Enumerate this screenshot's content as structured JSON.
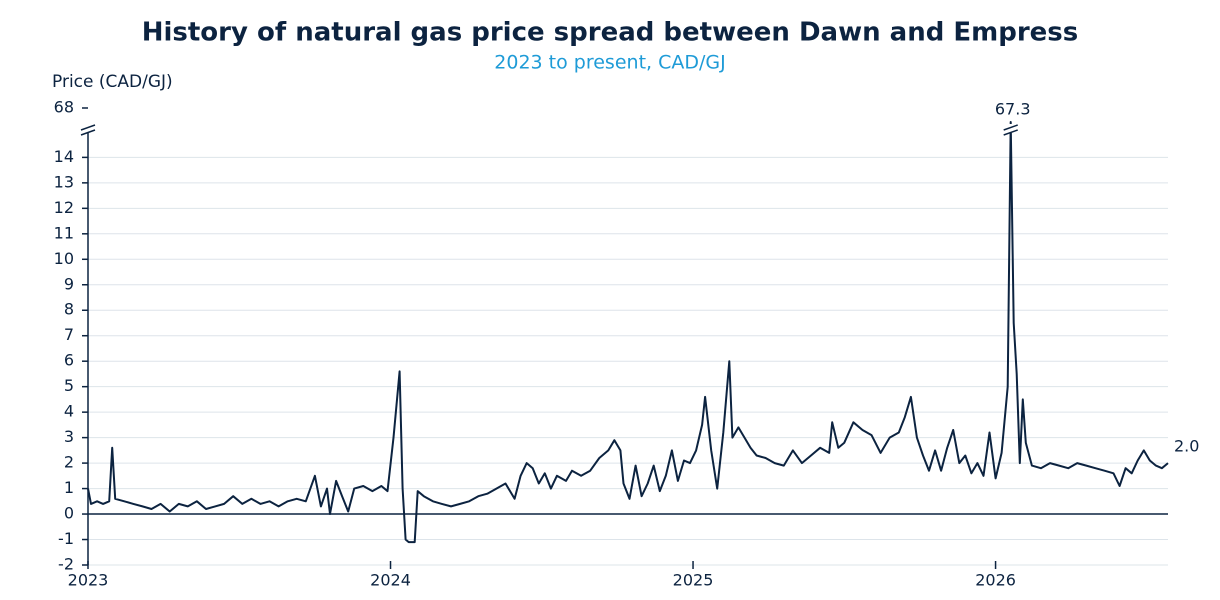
{
  "chart_data": {
    "type": "line",
    "title": "History of natural gas price spread between Dawn and Empress",
    "subtitle": "2023 to present, CAD/GJ",
    "y_label": "Price (CAD/GJ)",
    "xlim": [
      2023,
      2026.57
    ],
    "xticks": [
      2023,
      2024,
      2025,
      2026
    ],
    "ylim": [
      -2,
      68
    ],
    "ybreak": [
      14.8,
      67
    ],
    "yticks": [
      -2,
      -1,
      0,
      1,
      2,
      3,
      4,
      5,
      6,
      7,
      8,
      9,
      10,
      11,
      12,
      13,
      14,
      68
    ],
    "grid": true,
    "series": [
      {
        "color": "#0c2340",
        "x": [
          2023.0,
          2023.01,
          2023.03,
          2023.05,
          2023.07,
          2023.08,
          2023.09,
          2023.12,
          2023.15,
          2023.18,
          2023.21,
          2023.24,
          2023.27,
          2023.3,
          2023.33,
          2023.36,
          2023.39,
          2023.42,
          2023.45,
          2023.48,
          2023.51,
          2023.54,
          2023.57,
          2023.6,
          2023.63,
          2023.66,
          2023.69,
          2023.72,
          2023.75,
          2023.77,
          2023.79,
          2023.8,
          2023.82,
          2023.84,
          2023.86,
          2023.88,
          2023.91,
          2023.94,
          2023.97,
          2023.99,
          2024.01,
          2024.03,
          2024.04,
          2024.05,
          2024.06,
          2024.08,
          2024.09,
          2024.11,
          2024.14,
          2024.17,
          2024.2,
          2024.23,
          2024.26,
          2024.29,
          2024.32,
          2024.35,
          2024.38,
          2024.41,
          2024.43,
          2024.45,
          2024.47,
          2024.49,
          2024.51,
          2024.53,
          2024.55,
          2024.58,
          2024.6,
          2024.63,
          2024.66,
          2024.69,
          2024.72,
          2024.74,
          2024.76,
          2024.77,
          2024.79,
          2024.81,
          2024.83,
          2024.85,
          2024.87,
          2024.89,
          2024.91,
          2024.93,
          2024.95,
          2024.97,
          2024.99,
          2025.01,
          2025.03,
          2025.04,
          2025.06,
          2025.08,
          2025.1,
          2025.12,
          2025.13,
          2025.15,
          2025.17,
          2025.19,
          2025.21,
          2025.24,
          2025.27,
          2025.3,
          2025.33,
          2025.36,
          2025.39,
          2025.42,
          2025.45,
          2025.46,
          2025.48,
          2025.5,
          2025.53,
          2025.56,
          2025.59,
          2025.62,
          2025.65,
          2025.68,
          2025.7,
          2025.72,
          2025.74,
          2025.76,
          2025.78,
          2025.8,
          2025.82,
          2025.84,
          2025.86,
          2025.88,
          2025.9,
          2025.92,
          2025.94,
          2025.96,
          2025.98,
          2026.0,
          2026.02,
          2026.04,
          2026.05,
          2026.06,
          2026.07,
          2026.08,
          2026.09,
          2026.1,
          2026.12,
          2026.15,
          2026.18,
          2026.21,
          2026.24,
          2026.27,
          2026.3,
          2026.33,
          2026.36,
          2026.39,
          2026.41,
          2026.43,
          2026.45,
          2026.47,
          2026.49,
          2026.51,
          2026.53,
          2026.55,
          2026.57
        ],
        "values": [
          1.0,
          0.4,
          0.5,
          0.4,
          0.5,
          2.6,
          0.6,
          0.5,
          0.4,
          0.3,
          0.2,
          0.4,
          0.1,
          0.4,
          0.3,
          0.5,
          0.2,
          0.3,
          0.4,
          0.7,
          0.4,
          0.6,
          0.4,
          0.5,
          0.3,
          0.5,
          0.6,
          0.5,
          1.5,
          0.3,
          1.0,
          0.0,
          1.3,
          0.7,
          0.1,
          1.0,
          1.1,
          0.9,
          1.1,
          0.9,
          3.0,
          5.6,
          1.0,
          -1.0,
          -1.1,
          -1.1,
          0.9,
          0.7,
          0.5,
          0.4,
          0.3,
          0.4,
          0.5,
          0.7,
          0.8,
          1.0,
          1.2,
          0.6,
          1.5,
          2.0,
          1.8,
          1.2,
          1.6,
          1.0,
          1.5,
          1.3,
          1.7,
          1.5,
          1.7,
          2.2,
          2.5,
          2.9,
          2.5,
          1.2,
          0.6,
          1.9,
          0.7,
          1.2,
          1.9,
          0.9,
          1.5,
          2.5,
          1.3,
          2.1,
          2.0,
          2.5,
          3.5,
          4.6,
          2.5,
          1.0,
          3.2,
          6.0,
          3.0,
          3.4,
          3.0,
          2.6,
          2.3,
          2.2,
          2.0,
          1.9,
          2.5,
          2.0,
          2.3,
          2.6,
          2.4,
          3.6,
          2.6,
          2.8,
          3.6,
          3.3,
          3.1,
          2.4,
          3.0,
          3.2,
          3.8,
          4.6,
          3.0,
          2.3,
          1.7,
          2.5,
          1.7,
          2.6,
          3.3,
          2.0,
          2.3,
          1.6,
          2.0,
          1.5,
          3.2,
          1.4,
          2.4,
          5.0,
          67.3,
          7.5,
          5.5,
          2.0,
          4.5,
          2.8,
          1.9,
          1.8,
          2.0,
          1.9,
          1.8,
          2.0,
          1.9,
          1.8,
          1.7,
          1.6,
          1.1,
          1.8,
          1.6,
          2.1,
          2.5,
          2.1,
          1.9,
          1.8,
          2.0
        ]
      }
    ],
    "annotations": [
      {
        "x": 2026.05,
        "y": 67.3,
        "label": "67.3"
      },
      {
        "x": 2026.57,
        "y": 2,
        "label": "2.0"
      }
    ]
  }
}
